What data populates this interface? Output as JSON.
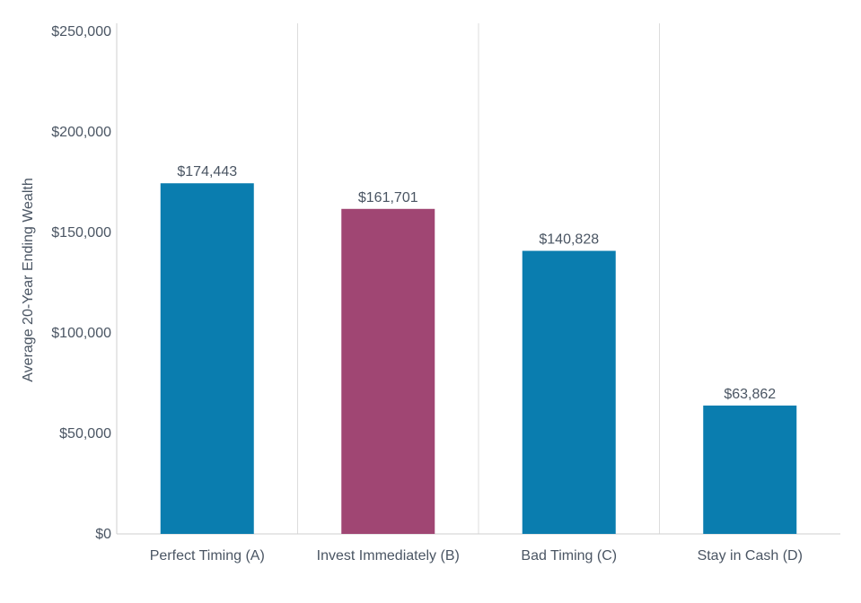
{
  "chart_data": {
    "type": "bar",
    "title": "",
    "xlabel": "",
    "ylabel": "Average 20-Year Ending Wealth",
    "ylim": [
      0,
      250000
    ],
    "y_ticks": [
      0,
      50000,
      100000,
      150000,
      200000,
      250000
    ],
    "y_tick_labels": [
      "$0",
      "$50,000",
      "$100,000",
      "$150,000",
      "$200,000",
      "$250,000"
    ],
    "categories": [
      "Perfect Timing (A)",
      "Invest Immediately (B)",
      "Bad Timing (C)",
      "Stay in Cash (D)"
    ],
    "values": [
      174443,
      161701,
      140828,
      63862
    ],
    "data_labels": [
      "$174,443",
      "$161,701",
      "$140,828",
      "$63,862"
    ],
    "bar_colors": [
      "#0a7daf",
      "#a04673",
      "#0a7daf",
      "#0a7daf"
    ],
    "grid": "vertical category separators",
    "legend": "none"
  },
  "colors": {
    "primary_bar": "#0a7daf",
    "highlight_bar": "#a04673",
    "text": "#4a5563",
    "gridline": "#dcdcdc",
    "axis": "#cfcfcf"
  }
}
